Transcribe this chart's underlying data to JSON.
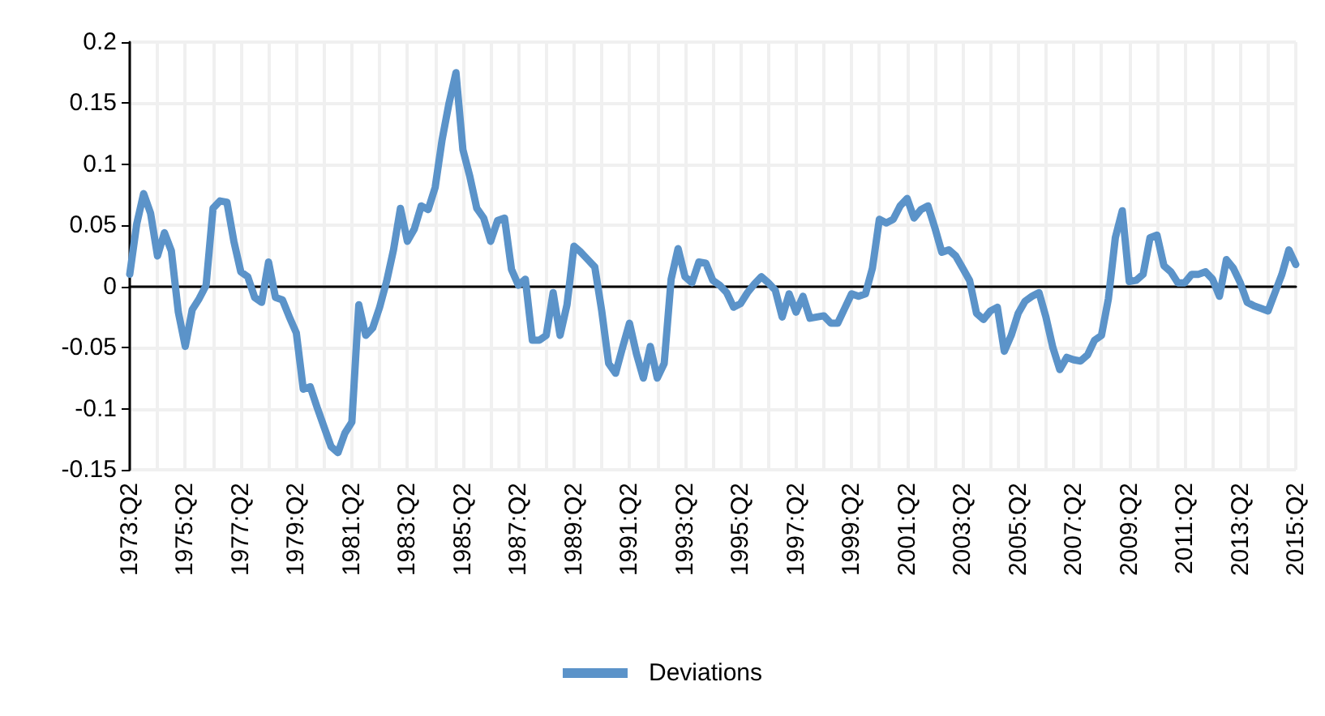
{
  "chart_data": {
    "type": "line",
    "categories": [
      "1973:Q2",
      null,
      null,
      null,
      null,
      null,
      null,
      null,
      "1975:Q2",
      null,
      null,
      null,
      null,
      null,
      null,
      null,
      "1977:Q2",
      null,
      null,
      null,
      null,
      null,
      null,
      null,
      "1979:Q2",
      null,
      null,
      null,
      null,
      null,
      null,
      null,
      "1981:Q2",
      null,
      null,
      null,
      null,
      null,
      null,
      null,
      "1983:Q2",
      null,
      null,
      null,
      null,
      null,
      null,
      null,
      "1985:Q2",
      null,
      null,
      null,
      null,
      null,
      null,
      null,
      "1987:Q2",
      null,
      null,
      null,
      null,
      null,
      null,
      null,
      "1989:Q2",
      null,
      null,
      null,
      null,
      null,
      null,
      null,
      "1991:Q2",
      null,
      null,
      null,
      null,
      null,
      null,
      null,
      "1993:Q2",
      null,
      null,
      null,
      null,
      null,
      null,
      null,
      "1995:Q2",
      null,
      null,
      null,
      null,
      null,
      null,
      null,
      "1997:Q2",
      null,
      null,
      null,
      null,
      null,
      null,
      null,
      "1999:Q2",
      null,
      null,
      null,
      null,
      null,
      null,
      null,
      "2001:Q2",
      null,
      null,
      null,
      null,
      null,
      null,
      null,
      "2003:Q2",
      null,
      null,
      null,
      null,
      null,
      null,
      null,
      "2005:Q2",
      null,
      null,
      null,
      null,
      null,
      null,
      null,
      "2007:Q2",
      null,
      null,
      null,
      null,
      null,
      null,
      null,
      "2009:Q2",
      null,
      null,
      null,
      null,
      null,
      null,
      null,
      "2011:Q2",
      null,
      null,
      null,
      null,
      null,
      null,
      null,
      "2013:Q2",
      null,
      null,
      null,
      null,
      null,
      null,
      null,
      "2015:Q2"
    ],
    "series": [
      {
        "name": "Deviations",
        "color": "#5b93c9",
        "values": [
          0.01,
          0.051,
          0.076,
          0.06,
          0.025,
          0.044,
          0.029,
          -0.021,
          -0.049,
          -0.019,
          -0.01,
          0.001,
          0.064,
          0.07,
          0.069,
          0.037,
          0.012,
          0.008,
          -0.009,
          -0.013,
          0.02,
          -0.009,
          -0.011,
          -0.025,
          -0.038,
          -0.084,
          -0.082,
          -0.099,
          -0.115,
          -0.131,
          -0.136,
          -0.12,
          -0.111,
          -0.015,
          -0.04,
          -0.034,
          -0.017,
          0.004,
          0.03,
          0.064,
          0.037,
          0.047,
          0.066,
          0.063,
          0.081,
          0.12,
          0.15,
          0.175,
          0.112,
          0.09,
          0.064,
          0.056,
          0.037,
          0.054,
          0.056,
          0.014,
          0.001,
          0.006,
          -0.044,
          -0.044,
          -0.04,
          -0.005,
          -0.04,
          -0.015,
          0.033,
          0.028,
          0.022,
          0.016,
          -0.02,
          -0.063,
          -0.071,
          -0.05,
          -0.03,
          -0.055,
          -0.075,
          -0.049,
          -0.075,
          -0.063,
          0.006,
          0.031,
          0.008,
          0.003,
          0.02,
          0.019,
          0.005,
          0.001,
          -0.005,
          -0.017,
          -0.014,
          -0.005,
          0.002,
          0.008,
          0.003,
          -0.003,
          -0.025,
          -0.006,
          -0.021,
          -0.008,
          -0.026,
          -0.025,
          -0.024,
          -0.03,
          -0.03,
          -0.018,
          -0.006,
          -0.008,
          -0.006,
          0.015,
          0.055,
          0.052,
          0.055,
          0.066,
          0.072,
          0.056,
          0.063,
          0.066,
          0.048,
          0.028,
          0.03,
          0.025,
          0.015,
          0.005,
          -0.022,
          -0.027,
          -0.02,
          -0.017,
          -0.053,
          -0.04,
          -0.022,
          -0.012,
          -0.008,
          -0.005,
          -0.025,
          -0.05,
          -0.068,
          -0.058,
          -0.06,
          -0.061,
          -0.056,
          -0.044,
          -0.04,
          -0.01,
          0.04,
          0.062,
          0.004,
          0.005,
          0.01,
          0.04,
          0.042,
          0.017,
          0.012,
          0.003,
          0.003,
          0.01,
          0.01,
          0.012,
          0.006,
          -0.008,
          0.022,
          0.015,
          0.003,
          -0.013,
          -0.016,
          -0.018,
          -0.02,
          -0.005,
          0.01,
          0.03,
          0.018
        ]
      }
    ],
    "ylim": [
      -0.15,
      0.2
    ],
    "yticks": [
      -0.15,
      -0.1,
      -0.05,
      0,
      0.05,
      0.1,
      0.15,
      0.2
    ],
    "grid": true,
    "legend": "bottom",
    "marker": "none",
    "line_style": "solid"
  }
}
